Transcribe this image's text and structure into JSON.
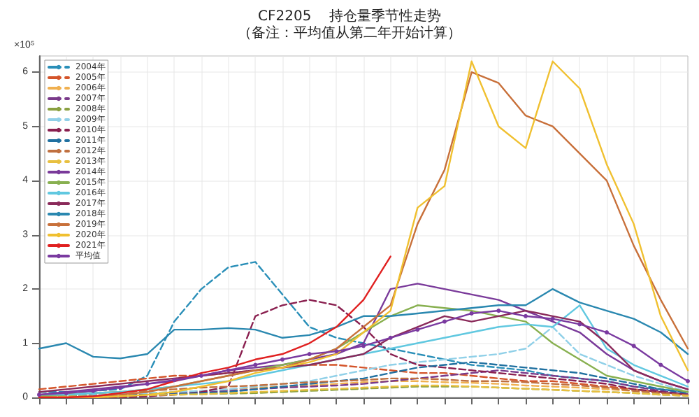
{
  "chart_data": {
    "type": "line",
    "title": "CF2205    持仓量季节性走势",
    "subtitle": "（备注：平均值从第二年开始计算）",
    "ylabel": "×10⁵",
    "categories": [
      null,
      null,
      null,
      null,
      null,
      null,
      null,
      null,
      null,
      null,
      null,
      null,
      null,
      null,
      null,
      null,
      null,
      null,
      null,
      null,
      null,
      null,
      null,
      null,
      null
    ],
    "ylim": [
      0,
      6.3
    ],
    "yticks": [
      0,
      1,
      2,
      3,
      4,
      5,
      6
    ],
    "grid": true,
    "legend": "top left",
    "series": [
      {
        "name": "2004年",
        "color": "#2a8fb8",
        "line_style": "dashed",
        "values": [
          0.1,
          0.1,
          0.12,
          0.15,
          0.4,
          1.4,
          2.0,
          2.4,
          2.5,
          1.9,
          1.3,
          1.1,
          1.0,
          0.9,
          0.8,
          0.7,
          0.6,
          0.55,
          0.5,
          0.4,
          0.35,
          0.3,
          0.2,
          0.15,
          0.1
        ]
      },
      {
        "name": "2005年",
        "color": "#d4542a",
        "line_style": "dashed",
        "values": [
          0.15,
          0.2,
          0.25,
          0.3,
          0.35,
          0.4,
          0.4,
          0.45,
          0.5,
          0.55,
          0.6,
          0.6,
          0.55,
          0.5,
          0.45,
          0.45,
          0.4,
          0.35,
          0.3,
          0.3,
          0.25,
          0.2,
          0.15,
          0.1,
          0.05
        ]
      },
      {
        "name": "2006年",
        "color": "#f0b050",
        "line_style": "dashed",
        "values": [
          0.02,
          0.03,
          0.05,
          0.06,
          0.08,
          0.1,
          0.12,
          0.15,
          0.18,
          0.2,
          0.22,
          0.25,
          0.28,
          0.3,
          0.3,
          0.28,
          0.27,
          0.25,
          0.22,
          0.2,
          0.18,
          0.15,
          0.12,
          0.08,
          0.05
        ]
      },
      {
        "name": "2007年",
        "color": "#7a3a8a",
        "line_style": "dashed",
        "values": [
          0.02,
          0.03,
          0.04,
          0.05,
          0.06,
          0.08,
          0.1,
          0.12,
          0.15,
          0.18,
          0.2,
          0.22,
          0.25,
          0.3,
          0.35,
          0.4,
          0.45,
          0.5,
          0.45,
          0.4,
          0.35,
          0.3,
          0.2,
          0.12,
          0.06
        ]
      },
      {
        "name": "2008年",
        "color": "#8aa040",
        "line_style": "dashed",
        "values": [
          0.02,
          0.02,
          0.03,
          0.03,
          0.04,
          0.05,
          0.06,
          0.07,
          0.08,
          0.1,
          0.12,
          0.14,
          0.16,
          0.18,
          0.2,
          0.2,
          0.2,
          0.18,
          0.16,
          0.14,
          0.12,
          0.1,
          0.08,
          0.05,
          0.03
        ]
      },
      {
        "name": "2009年",
        "color": "#90d0e8",
        "line_style": "dashed",
        "values": [
          0.03,
          0.04,
          0.05,
          0.06,
          0.08,
          0.1,
          0.12,
          0.15,
          0.2,
          0.25,
          0.3,
          0.4,
          0.5,
          0.6,
          0.65,
          0.7,
          0.75,
          0.8,
          0.9,
          1.3,
          0.8,
          0.6,
          0.4,
          0.25,
          0.1
        ]
      },
      {
        "name": "2010年",
        "color": "#8a2050",
        "line_style": "dashed",
        "values": [
          0,
          0,
          0,
          0,
          0.02,
          0.05,
          0.1,
          0.2,
          1.5,
          1.7,
          1.8,
          1.7,
          1.3,
          0.8,
          0.6,
          0.55,
          0.5,
          0.45,
          0.4,
          0.35,
          0.3,
          0.25,
          0.15,
          0.1,
          0.05
        ]
      },
      {
        "name": "2011年",
        "color": "#2070a0",
        "line_style": "dashed",
        "values": [
          0.02,
          0.02,
          0.03,
          0.04,
          0.05,
          0.06,
          0.08,
          0.1,
          0.15,
          0.2,
          0.25,
          0.3,
          0.35,
          0.45,
          0.55,
          0.6,
          0.65,
          0.6,
          0.55,
          0.5,
          0.45,
          0.35,
          0.25,
          0.15,
          0.08
        ]
      },
      {
        "name": "2012年",
        "color": "#c07040",
        "line_style": "dashed",
        "values": [
          0.05,
          0.06,
          0.08,
          0.1,
          0.12,
          0.15,
          0.18,
          0.2,
          0.22,
          0.25,
          0.28,
          0.3,
          0.32,
          0.35,
          0.35,
          0.33,
          0.3,
          0.3,
          0.28,
          0.25,
          0.22,
          0.18,
          0.12,
          0.08,
          0.04
        ]
      },
      {
        "name": "2013年",
        "color": "#e8c040",
        "line_style": "dashed",
        "values": [
          0.01,
          0.02,
          0.02,
          0.03,
          0.04,
          0.05,
          0.06,
          0.08,
          0.1,
          0.12,
          0.14,
          0.16,
          0.18,
          0.2,
          0.22,
          0.22,
          0.2,
          0.18,
          0.16,
          0.14,
          0.12,
          0.1,
          0.08,
          0.05,
          0.03
        ]
      },
      {
        "name": "2014年",
        "color": "#7a3a9a",
        "line_style": "solid",
        "values": [
          0.05,
          0.1,
          0.15,
          0.2,
          0.25,
          0.3,
          0.4,
          0.5,
          0.55,
          0.6,
          0.7,
          0.8,
          1.0,
          2.0,
          2.1,
          2.0,
          1.9,
          1.8,
          1.6,
          1.4,
          1.2,
          0.8,
          0.5,
          0.3,
          0.15
        ]
      },
      {
        "name": "2015年",
        "color": "#88b050",
        "line_style": "solid",
        "values": [
          0.02,
          0.05,
          0.08,
          0.1,
          0.15,
          0.2,
          0.3,
          0.4,
          0.5,
          0.6,
          0.7,
          0.9,
          1.2,
          1.5,
          1.7,
          1.65,
          1.6,
          1.5,
          1.4,
          1.0,
          0.7,
          0.4,
          0.3,
          0.2,
          0.1
        ]
      },
      {
        "name": "2016年",
        "color": "#60c8e0",
        "line_style": "solid",
        "values": [
          0.05,
          0.05,
          0.08,
          0.1,
          0.15,
          0.2,
          0.25,
          0.3,
          0.4,
          0.5,
          0.6,
          0.7,
          0.8,
          0.9,
          1.0,
          1.1,
          1.2,
          1.3,
          1.35,
          1.3,
          1.7,
          0.9,
          0.6,
          0.4,
          0.2
        ]
      },
      {
        "name": "2017年",
        "color": "#8a2a5a",
        "line_style": "solid",
        "values": [
          0.1,
          0.15,
          0.2,
          0.25,
          0.3,
          0.35,
          0.4,
          0.45,
          0.5,
          0.55,
          0.6,
          0.7,
          0.8,
          1.1,
          1.3,
          1.5,
          1.4,
          1.5,
          1.6,
          1.5,
          1.4,
          1.0,
          0.5,
          0.3,
          0.15
        ]
      },
      {
        "name": "2018年",
        "color": "#2a88b0",
        "line_style": "solid",
        "values": [
          0.9,
          1.0,
          0.75,
          0.72,
          0.8,
          1.25,
          1.25,
          1.28,
          1.25,
          1.1,
          1.15,
          1.3,
          1.5,
          1.5,
          1.55,
          1.6,
          1.65,
          1.7,
          1.7,
          2.0,
          1.75,
          1.6,
          1.45,
          1.2,
          0.8
        ]
      },
      {
        "name": "2019年",
        "color": "#c8703a",
        "line_style": "solid",
        "values": [
          0,
          0,
          0.02,
          0.05,
          0.1,
          0.2,
          0.3,
          0.4,
          0.5,
          0.55,
          0.7,
          0.9,
          1.3,
          1.7,
          3.2,
          4.2,
          6.0,
          5.8,
          5.2,
          5.0,
          4.5,
          4.0,
          2.8,
          1.8,
          0.9
        ]
      },
      {
        "name": "2020年",
        "color": "#f0c030",
        "line_style": "solid",
        "values": [
          0,
          0,
          0,
          0.02,
          0.05,
          0.1,
          0.2,
          0.3,
          0.45,
          0.55,
          0.65,
          0.8,
          1.2,
          1.6,
          3.5,
          3.9,
          6.2,
          5.0,
          4.6,
          6.2,
          5.7,
          4.3,
          3.2,
          1.5,
          0.5
        ]
      },
      {
        "name": "2021年",
        "color": "#e02020",
        "line_style": "solid",
        "values": [
          0,
          0,
          0.02,
          0.08,
          0.15,
          0.3,
          0.45,
          0.55,
          0.7,
          0.8,
          1.0,
          1.3,
          1.8,
          2.6,
          null,
          null,
          null,
          null,
          null,
          null,
          null,
          null,
          null,
          null,
          null
        ]
      },
      {
        "name": "平均值",
        "color": "#7a3aa0",
        "line_style": "solid",
        "marker": "circle",
        "values": [
          0.05,
          0.08,
          0.12,
          0.18,
          0.25,
          0.32,
          0.4,
          0.5,
          0.6,
          0.7,
          0.8,
          0.85,
          0.95,
          1.1,
          1.25,
          1.4,
          1.55,
          1.6,
          1.5,
          1.45,
          1.35,
          1.2,
          0.95,
          0.6,
          0.3
        ]
      }
    ]
  }
}
